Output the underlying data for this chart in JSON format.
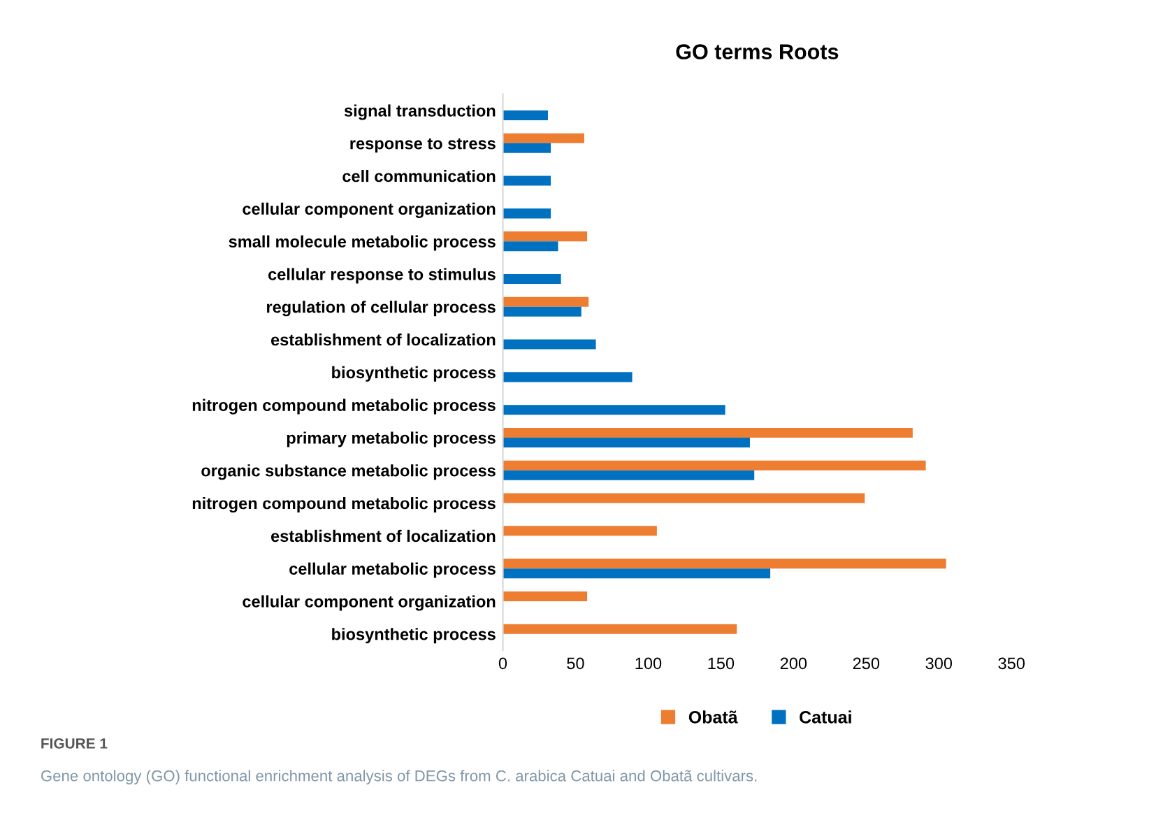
{
  "chart_data": {
    "type": "bar",
    "orientation": "horizontal",
    "title": "GO terms Roots",
    "categories": [
      "signal transduction",
      "response to stress",
      "cell communication",
      "cellular component organization",
      "small molecule metabolic process",
      "cellular response to stimulus",
      "regulation of cellular process",
      "establishment of localization",
      "biosynthetic process",
      "nitrogen compound metabolic process",
      "primary metabolic process",
      "organic substance metabolic process",
      "nitrogen compound metabolic process",
      "establishment of localization",
      "cellular metabolic process",
      "cellular component organization",
      "biosynthetic process"
    ],
    "series": [
      {
        "name": "Obatã",
        "color": "#ed7d31",
        "values": [
          null,
          56,
          null,
          null,
          58,
          null,
          59,
          null,
          null,
          null,
          282,
          291,
          249,
          106,
          305,
          58,
          161
        ]
      },
      {
        "name": "Catuai",
        "color": "#0070c0",
        "values": [
          31,
          33,
          33,
          33,
          38,
          40,
          54,
          64,
          89,
          153,
          170,
          173,
          null,
          null,
          184,
          null,
          null
        ]
      }
    ],
    "xlim": [
      0,
      350
    ],
    "xticks": [
      0,
      50,
      100,
      150,
      200,
      250,
      300,
      350
    ],
    "grid": false,
    "legend": "bottom",
    "annotations": [
      "FIGURE 1",
      "Gene ontology (GO) functional enrichment analysis of DEGs from C. arabica Catuai and Obatã cultivars."
    ]
  }
}
